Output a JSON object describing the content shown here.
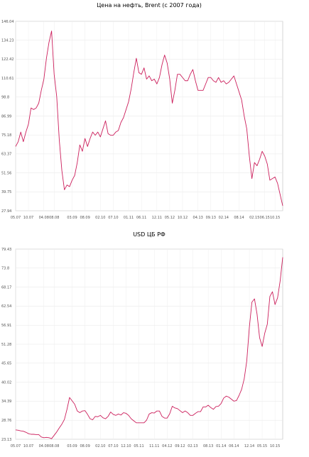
{
  "chart_data": [
    {
      "type": "line",
      "title": "Цена на нефть, Brent (с 2007 года)",
      "color": "#cc1f5c",
      "grid": true,
      "ylim": [
        27.94,
        146.04
      ],
      "yticks": [
        27.94,
        39.75,
        51.56,
        63.37,
        75.18,
        86.99,
        98.8,
        110.61,
        122.42,
        134.23,
        146.04
      ],
      "categories": [
        "05.07",
        null,
        null,
        null,
        null,
        "10.07",
        null,
        null,
        null,
        null,
        null,
        "04.08",
        null,
        null,
        null,
        "08.08",
        null,
        null,
        null,
        null,
        null,
        null,
        "03.09",
        null,
        null,
        null,
        null,
        "08.09",
        null,
        null,
        null,
        null,
        null,
        "02.10",
        null,
        null,
        null,
        null,
        "07.10",
        null,
        null,
        null,
        null,
        null,
        "01.11",
        null,
        null,
        null,
        null,
        "06.11",
        null,
        null,
        null,
        null,
        null,
        "12.11",
        null,
        null,
        null,
        null,
        "05.12",
        null,
        null,
        null,
        null,
        "10.12",
        null,
        null,
        null,
        null,
        null,
        "04.13",
        null,
        null,
        null,
        null,
        "09.13",
        null,
        null,
        null,
        null,
        "02.14",
        null,
        null,
        null,
        null,
        null,
        "08.14",
        null,
        null,
        null,
        null,
        null,
        "02.15",
        null,
        null,
        null,
        "06.15",
        null,
        null,
        null,
        "10.15",
        null,
        null,
        null
      ],
      "values": [
        68,
        71,
        77,
        71,
        77,
        82,
        92,
        91,
        92,
        95,
        103,
        110,
        123,
        133,
        140,
        113,
        99,
        72,
        53,
        41,
        44,
        43,
        47,
        50,
        58,
        69,
        65,
        73,
        68,
        73,
        77,
        75,
        77,
        74,
        79,
        84,
        76,
        75,
        75,
        77,
        78,
        83,
        86,
        91,
        96,
        104,
        114,
        123,
        114,
        113,
        117,
        110,
        112,
        109,
        110,
        107,
        111,
        119,
        125,
        120,
        110,
        95,
        103,
        113,
        113,
        111,
        109,
        109,
        113,
        116,
        109,
        103,
        103,
        103,
        107,
        111,
        111,
        109,
        108,
        111,
        108,
        109,
        107,
        108,
        110,
        112,
        107,
        102,
        97,
        87,
        79,
        62,
        48,
        58,
        56,
        60,
        65,
        62,
        57,
        47,
        48,
        49,
        45,
        38,
        31
      ]
    },
    {
      "type": "line",
      "title": "USD ЦБ РФ",
      "color": "#cc1f5c",
      "grid": true,
      "ylim": [
        23.13,
        79.43
      ],
      "yticks": [
        23.13,
        28.76,
        34.39,
        40.02,
        45.65,
        51.28,
        56.91,
        62.54,
        68.17,
        73.8,
        79.43
      ],
      "categories": [
        "05.07",
        null,
        null,
        null,
        null,
        "10.07",
        null,
        null,
        null,
        null,
        null,
        "04.08",
        null,
        null,
        null,
        "08.08",
        null,
        null,
        null,
        null,
        null,
        null,
        "03.09",
        null,
        null,
        null,
        null,
        "08.09",
        null,
        null,
        null,
        null,
        null,
        "02.10",
        null,
        null,
        null,
        null,
        "07.10",
        null,
        null,
        null,
        null,
        "12.10",
        null,
        null,
        null,
        null,
        "05.11",
        null,
        null,
        null,
        null,
        null,
        "11.11",
        null,
        null,
        null,
        null,
        "04.12",
        null,
        null,
        null,
        null,
        "09.12",
        null,
        null,
        null,
        null,
        "02.13",
        null,
        null,
        null,
        null,
        null,
        "08.13",
        null,
        null,
        null,
        null,
        "01.14",
        null,
        null,
        null,
        null,
        "06.14",
        null,
        null,
        null,
        null,
        null,
        "12.14",
        null,
        null,
        null,
        null,
        "05.15",
        null,
        null,
        null,
        null,
        "10.15",
        null,
        null,
        null
      ],
      "values": [
        25.9,
        25.8,
        25.6,
        25.5,
        25.2,
        24.8,
        24.6,
        24.6,
        24.5,
        24.5,
        23.8,
        23.6,
        23.7,
        23.6,
        23.3,
        24.3,
        25.3,
        26.5,
        27.6,
        29.0,
        32.0,
        35.5,
        34.5,
        33.5,
        31.5,
        31.0,
        31.5,
        31.6,
        30.5,
        29.2,
        28.9,
        29.9,
        29.8,
        30.2,
        29.5,
        29.2,
        29.9,
        31.2,
        30.5,
        30.2,
        30.6,
        30.3,
        31.0,
        30.8,
        30.2,
        29.2,
        28.6,
        28.0,
        28.0,
        28.0,
        28.0,
        28.8,
        30.6,
        31.0,
        30.9,
        31.5,
        31.5,
        29.9,
        29.4,
        29.4,
        30.7,
        32.9,
        32.4,
        32.2,
        31.6,
        31.0,
        31.5,
        31.0,
        30.2,
        30.2,
        30.8,
        31.3,
        31.3,
        32.7,
        32.7,
        33.2,
        32.5,
        32.0,
        32.8,
        32.9,
        33.7,
        35.3,
        35.9,
        35.6,
        35.0,
        34.4,
        34.6,
        36.1,
        37.9,
        41.0,
        46.3,
        56.2,
        63.7,
        64.7,
        60.2,
        53.2,
        50.6,
        54.5,
        57.2,
        65.4,
        66.8,
        63.0,
        65.0,
        70.0,
        77.0
      ]
    }
  ]
}
